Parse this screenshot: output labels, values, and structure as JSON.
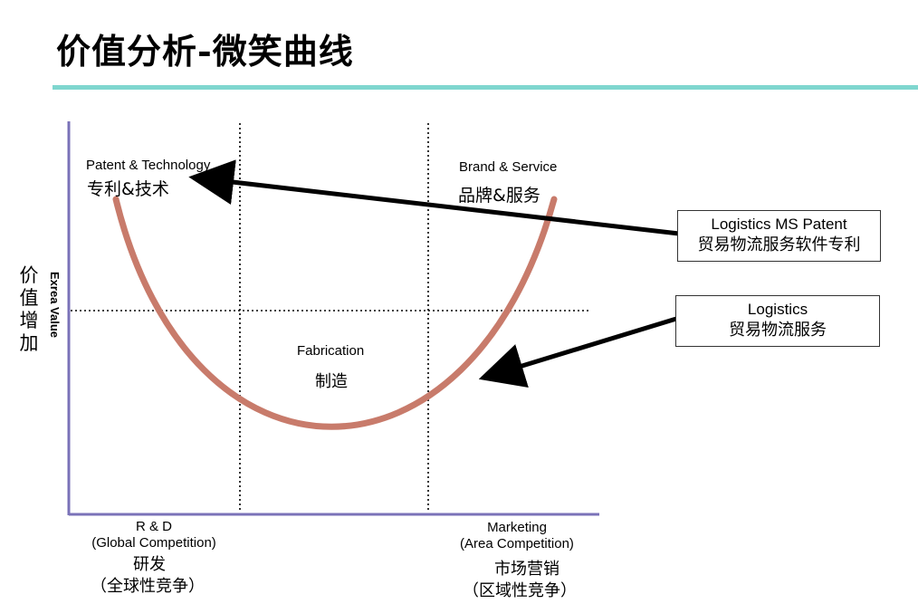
{
  "slide": {
    "title": "价值分析-微笑曲线"
  },
  "axis": {
    "y_label_cn": "价值增加",
    "y_label_en": "Exrea Value"
  },
  "zones": {
    "left": {
      "en": "Patent & Technology",
      "cn": "专利&技术"
    },
    "middle": {
      "en": "Fabrication",
      "cn": "制造"
    },
    "right": {
      "en": "Brand & Service",
      "cn": "品牌&服务"
    }
  },
  "bottom_labels": {
    "left": {
      "en1": "R & D",
      "en2": "(Global Competition)",
      "cn1": "研发",
      "cn2": "（全球性竞争）"
    },
    "right": {
      "en1": "Marketing",
      "en2": "(Area Competition)",
      "cn1": "市场营销",
      "cn2": "（区域性竞争）"
    }
  },
  "callouts": {
    "patent": {
      "en": "Logistics MS Patent",
      "cn": "贸易物流服务软件专利"
    },
    "service": {
      "en": "Logistics",
      "cn": "贸易物流服务"
    }
  },
  "colors": {
    "curve": "#c87b6b",
    "axis": "#7a72b8",
    "title_bar": "#7fd6cf"
  }
}
